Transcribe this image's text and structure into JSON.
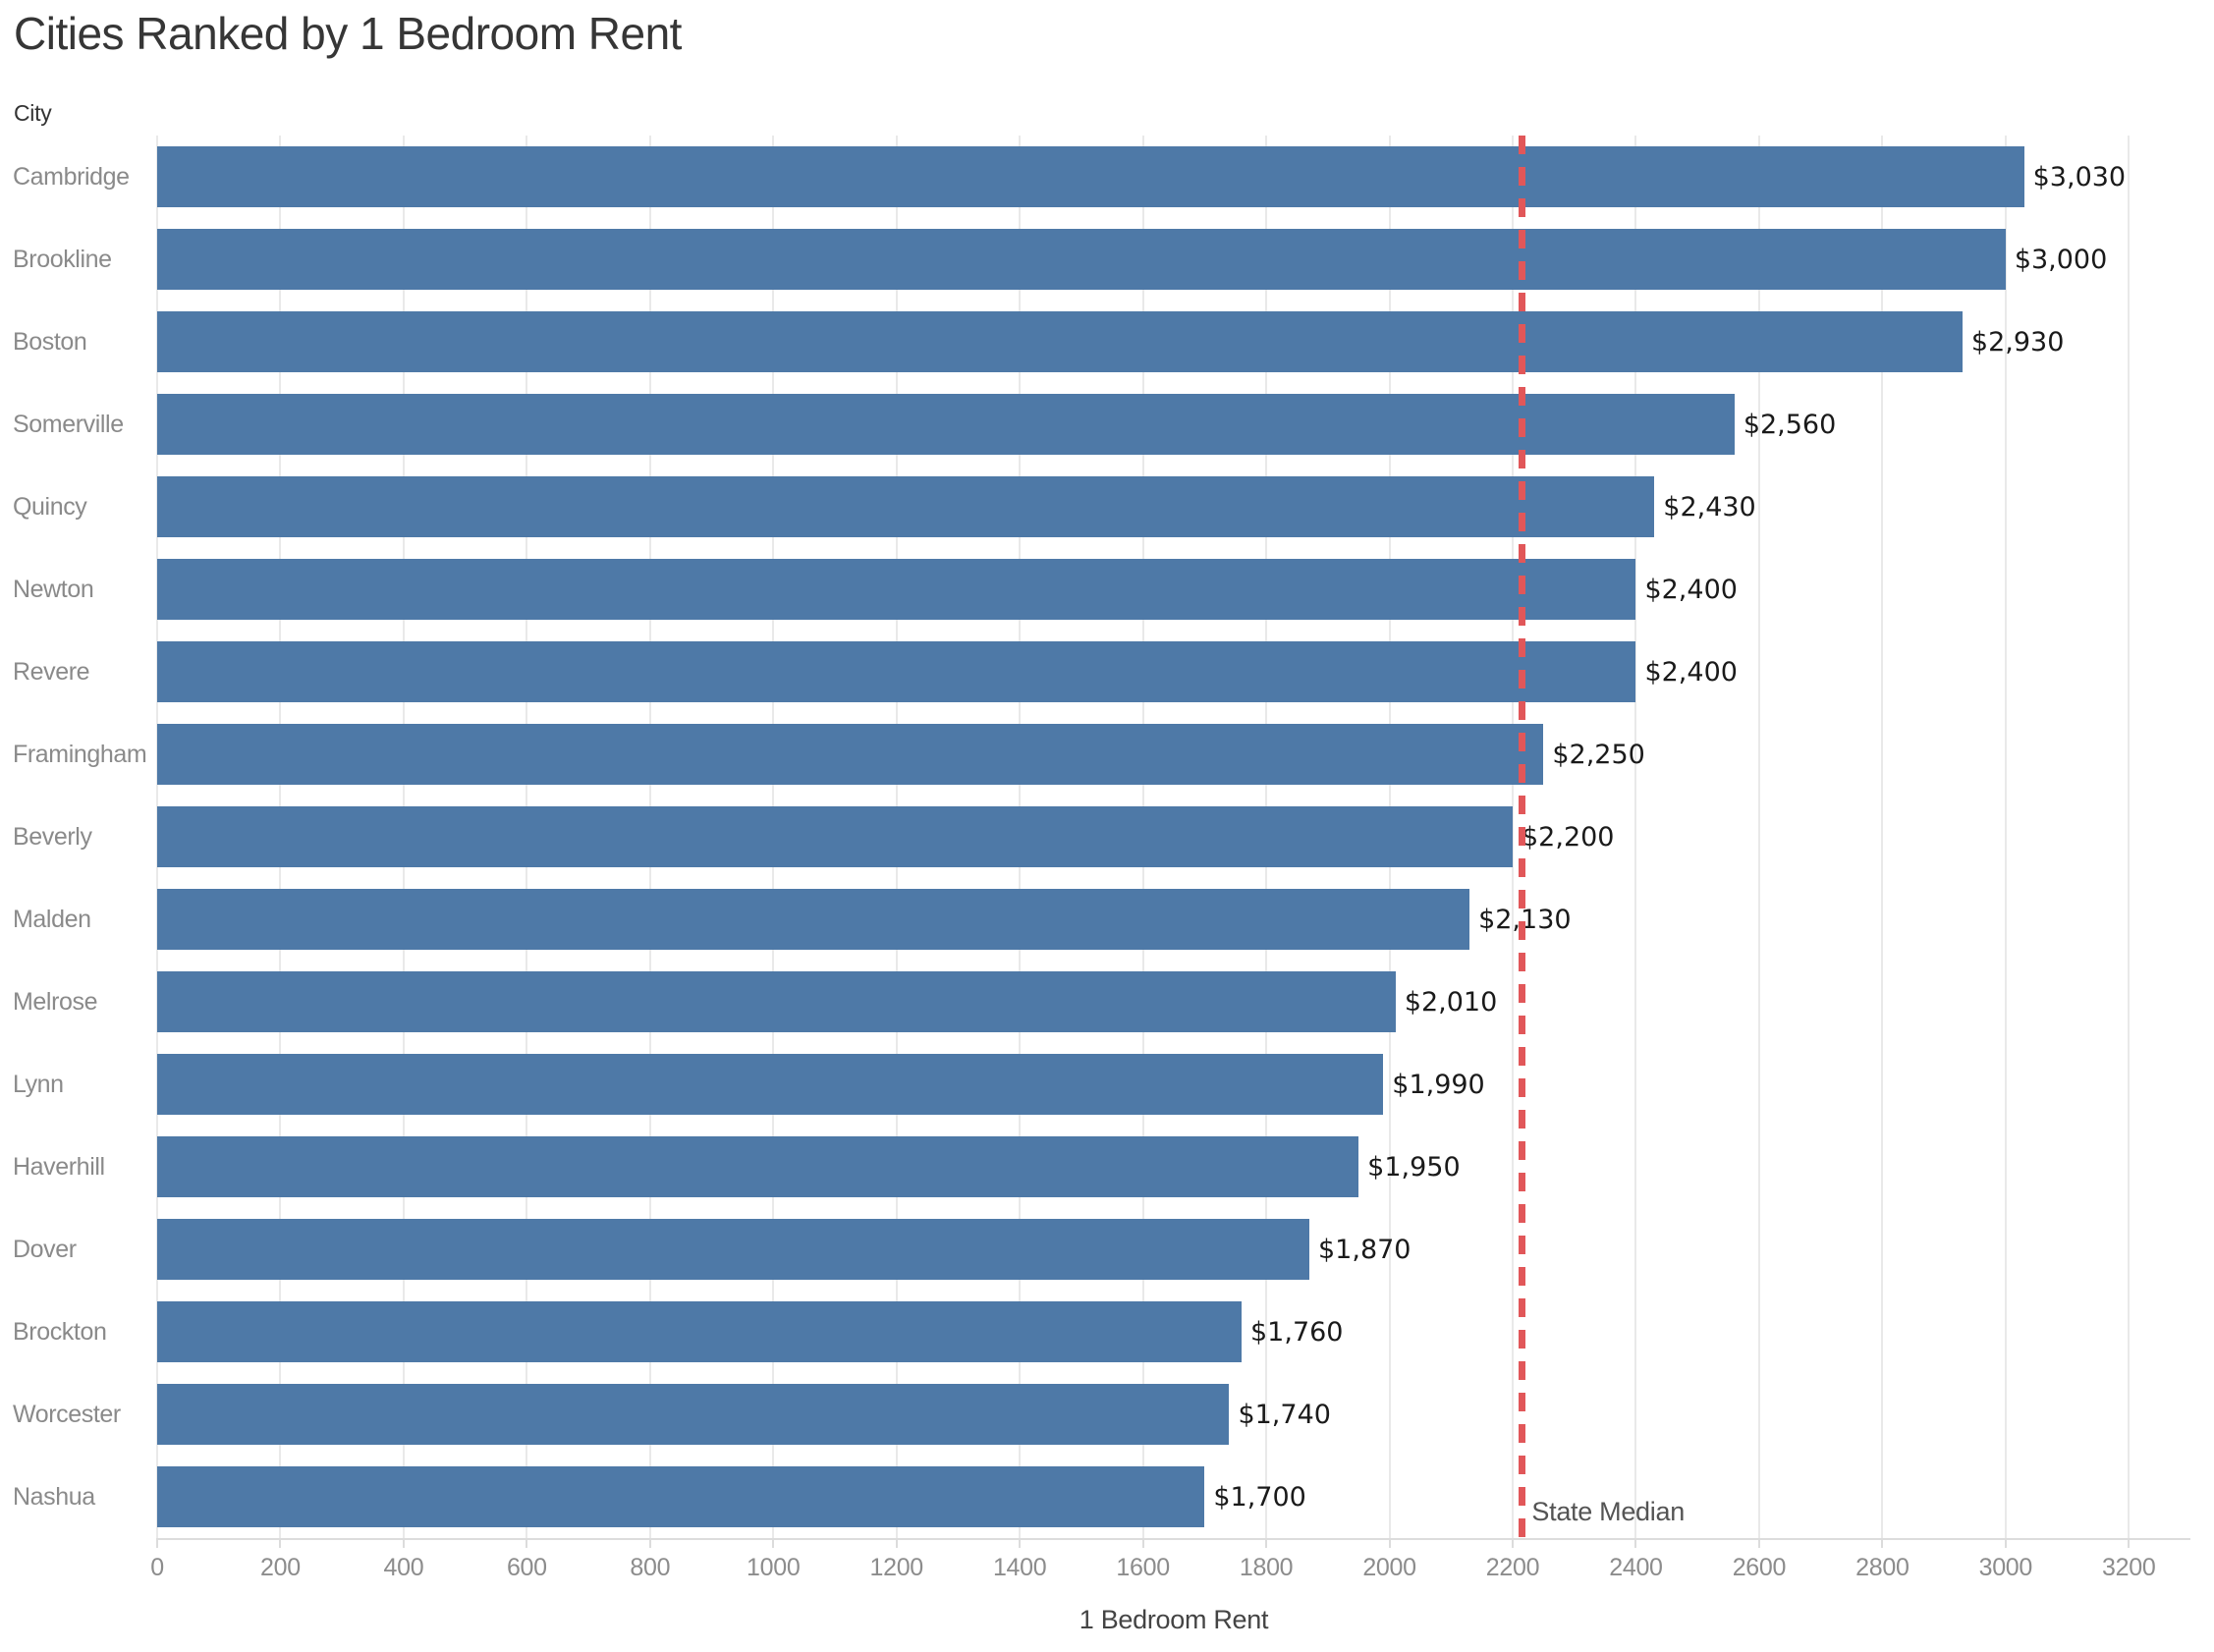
{
  "header": {
    "title": "Cities Ranked by 1 Bedroom Rent",
    "row_header": "City"
  },
  "colors": {
    "bar": "#4e79a7",
    "reference_line": "#e15759",
    "gridline": "#e9e9e9",
    "axis_line": "#dcdcdc",
    "title_text": "#363636",
    "category_text": "#8a8a8a",
    "tick_text": "#8c8c8c",
    "value_text": "#1a1a1a",
    "reference_label_text": "#545454"
  },
  "chart_data": {
    "type": "bar",
    "orientation": "horizontal",
    "title": "Cities Ranked by 1 Bedroom Rent",
    "xlabel": "1 Bedroom Rent",
    "ylabel": "City",
    "grid": true,
    "xlim": [
      0,
      3300
    ],
    "xticks": [
      0,
      200,
      400,
      600,
      800,
      1000,
      1200,
      1400,
      1600,
      1800,
      2000,
      2200,
      2400,
      2600,
      2800,
      3000,
      3200
    ],
    "categories": [
      "Cambridge",
      "Brookline",
      "Boston",
      "Somerville",
      "Quincy",
      "Newton",
      "Revere",
      "Framingham",
      "Beverly",
      "Malden",
      "Melrose",
      "Lynn",
      "Haverhill",
      "Dover",
      "Brockton",
      "Worcester",
      "Nashua"
    ],
    "values": [
      3030,
      3000,
      2930,
      2560,
      2430,
      2400,
      2400,
      2250,
      2200,
      2130,
      2010,
      1990,
      1950,
      1870,
      1760,
      1740,
      1700
    ],
    "value_labels": [
      "$3,030",
      "$3,000",
      "$2,930",
      "$2,560",
      "$2,430",
      "$2,400",
      "$2,400",
      "$2,250",
      "$2,200",
      "$2,130",
      "$2,010",
      "$1,990",
      "$1,950",
      "$1,870",
      "$1,760",
      "$1,740",
      "$1,700"
    ],
    "reference_line": {
      "label": "State Median",
      "value": 2215,
      "style": "dashed"
    }
  }
}
